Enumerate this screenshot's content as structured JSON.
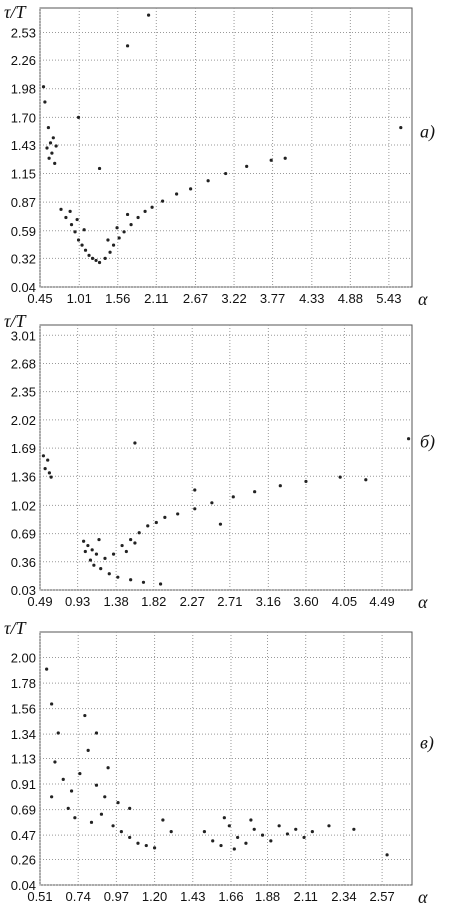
{
  "chart_data": [
    {
      "type": "scatter",
      "panel_label": "а)",
      "y_label": "τ/T",
      "x_label": "α",
      "color": "#222222",
      "grid": true,
      "xlim": [
        0.45,
        5.76
      ],
      "ylim": [
        0.04,
        2.77
      ],
      "xticks": [
        0.45,
        1.01,
        1.56,
        2.11,
        2.67,
        3.22,
        3.77,
        4.33,
        4.88,
        5.43
      ],
      "yticks": [
        0.04,
        0.32,
        0.59,
        0.87,
        1.15,
        1.43,
        {
          "value": 1.7,
          "label": "1.70"
        },
        1.98,
        2.26,
        2.53
      ],
      "x": [
        0.52,
        0.55,
        0.58,
        0.6,
        0.62,
        0.64,
        0.57,
        0.66,
        0.5,
        0.68,
        0.75,
        0.82,
        0.9,
        0.95,
        1.0,
        1.05,
        1.1,
        1.15,
        1.2,
        1.08,
        0.98,
        0.88,
        1.25,
        1.3,
        1.38,
        1.45,
        1.5,
        1.58,
        1.65,
        1.75,
        1.85,
        1.95,
        2.05,
        2.2,
        1.55,
        1.42,
        1.7,
        2.4,
        2.6,
        2.85,
        3.1,
        3.4,
        3.75,
        3.95,
        2.0,
        1.7,
        5.6,
        1.3,
        1.0
      ],
      "y": [
        1.85,
        1.4,
        1.3,
        1.45,
        1.35,
        1.5,
        1.6,
        1.25,
        2.0,
        1.42,
        0.8,
        0.72,
        0.65,
        0.58,
        0.5,
        0.45,
        0.4,
        0.35,
        0.32,
        0.6,
        0.7,
        0.78,
        0.3,
        0.28,
        0.32,
        0.38,
        0.45,
        0.52,
        0.58,
        0.65,
        0.72,
        0.78,
        0.82,
        0.88,
        0.62,
        0.5,
        0.75,
        0.95,
        1.0,
        1.08,
        1.15,
        1.22,
        1.28,
        1.3,
        2.7,
        2.4,
        1.6,
        1.2,
        1.7
      ]
    },
    {
      "type": "scatter",
      "panel_label": "б)",
      "y_label": "τ/T",
      "x_label": "α",
      "color": "#222222",
      "grid": true,
      "xlim": [
        0.49,
        4.84
      ],
      "ylim": [
        0.03,
        3.13
      ],
      "xticks": [
        0.49,
        0.93,
        1.38,
        1.82,
        2.27,
        2.71,
        3.16,
        {
          "value": 3.6,
          "label": "3.60"
        },
        4.05,
        4.49
      ],
      "yticks": [
        0.03,
        0.36,
        0.69,
        1.02,
        1.36,
        1.69,
        2.02,
        2.35,
        2.68,
        3.01
      ],
      "x": [
        0.55,
        0.58,
        0.6,
        0.53,
        0.62,
        1.0,
        1.05,
        1.1,
        1.15,
        1.08,
        1.12,
        1.2,
        1.3,
        1.4,
        1.55,
        1.7,
        1.9,
        1.02,
        1.18,
        1.25,
        1.35,
        1.45,
        1.55,
        1.65,
        1.75,
        1.85,
        1.95,
        2.1,
        2.3,
        1.5,
        1.6,
        2.5,
        2.75,
        3.0,
        3.3,
        3.6,
        4.0,
        4.3,
        4.8,
        1.6,
        2.3,
        2.6
      ],
      "y": [
        1.45,
        1.55,
        1.4,
        1.6,
        1.35,
        0.6,
        0.55,
        0.5,
        0.45,
        0.38,
        0.32,
        0.28,
        0.22,
        0.18,
        0.15,
        0.12,
        0.1,
        0.48,
        0.62,
        0.4,
        0.45,
        0.55,
        0.62,
        0.7,
        0.78,
        0.82,
        0.88,
        0.92,
        0.98,
        0.48,
        0.58,
        1.05,
        1.12,
        1.18,
        1.25,
        1.3,
        1.35,
        1.32,
        1.8,
        1.75,
        1.2,
        0.8
      ]
    },
    {
      "type": "scatter",
      "panel_label": "в)",
      "y_label": "τ/T",
      "x_label": "α",
      "color": "#222222",
      "grid": true,
      "xlim": [
        0.51,
        2.75
      ],
      "ylim": [
        0.04,
        2.22
      ],
      "xticks": [
        0.51,
        0.74,
        0.97,
        {
          "value": 1.2,
          "label": "1.20"
        },
        1.43,
        1.66,
        1.88,
        2.11,
        2.34,
        2.57
      ],
      "yticks": [
        0.04,
        0.26,
        0.47,
        0.69,
        0.91,
        1.13,
        1.34,
        1.56,
        1.78,
        {
          "value": 2,
          "label": "2.00"
        }
      ],
      "x": [
        0.55,
        0.58,
        0.62,
        0.6,
        0.65,
        0.7,
        0.75,
        0.8,
        0.78,
        0.85,
        0.9,
        0.68,
        0.72,
        0.82,
        0.88,
        0.95,
        1.0,
        1.05,
        1.1,
        1.15,
        1.2,
        0.92,
        0.98,
        1.05,
        0.58,
        0.85,
        1.25,
        1.3,
        1.5,
        1.55,
        1.6,
        1.65,
        1.7,
        1.75,
        1.8,
        1.85,
        1.9,
        1.95,
        2.0,
        2.05,
        2.1,
        2.15,
        2.25,
        2.4,
        1.62,
        1.78,
        1.68,
        2.6
      ],
      "y": [
        1.9,
        1.6,
        1.35,
        1.1,
        0.95,
        0.85,
        1.0,
        1.2,
        1.5,
        0.9,
        0.8,
        0.7,
        0.62,
        0.58,
        0.65,
        0.55,
        0.5,
        0.45,
        0.4,
        0.38,
        0.36,
        1.05,
        0.75,
        0.7,
        0.8,
        1.35,
        0.6,
        0.5,
        0.5,
        0.42,
        0.38,
        0.55,
        0.45,
        0.4,
        0.52,
        0.47,
        0.42,
        0.55,
        0.48,
        0.52,
        0.45,
        0.5,
        0.55,
        0.52,
        0.62,
        0.6,
        0.35,
        0.3
      ]
    }
  ]
}
